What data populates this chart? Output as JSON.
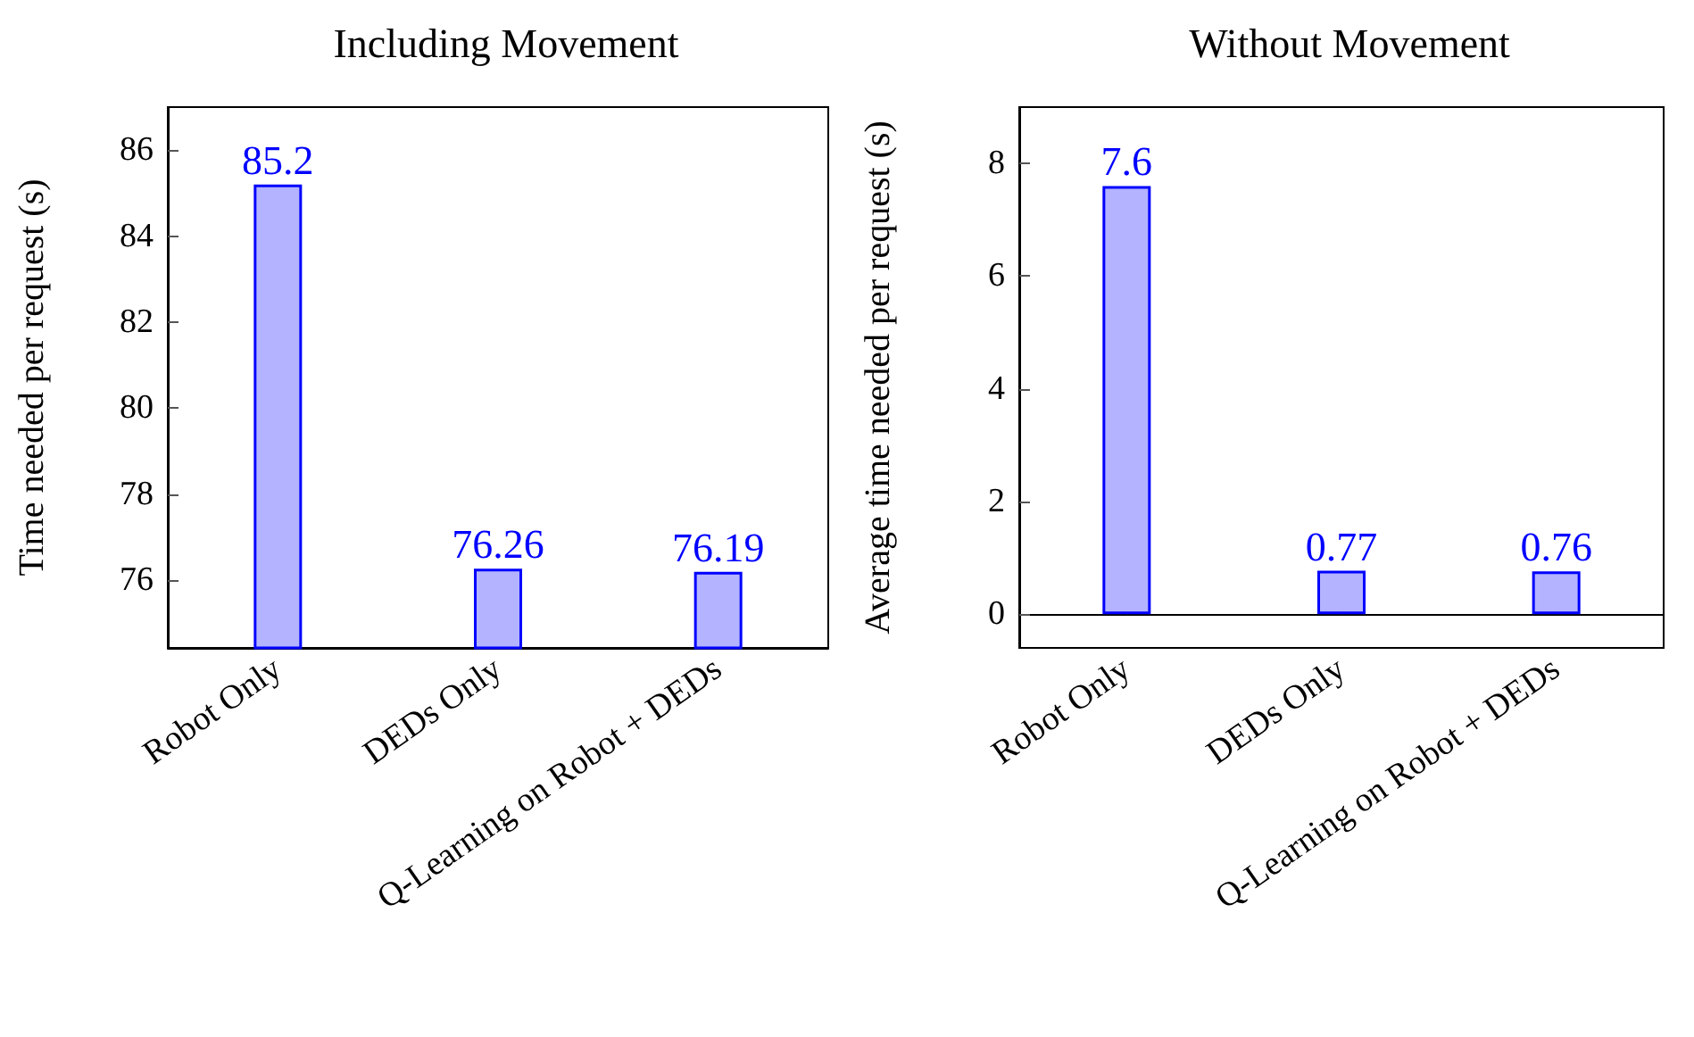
{
  "chart_data": [
    {
      "type": "bar",
      "title": "Including Movement",
      "ylabel": "Time needed per request (s)",
      "categories": [
        "Robot Only",
        "DEDs Only",
        "Q-Learning on Robot + DEDs"
      ],
      "values": [
        85.2,
        76.26,
        76.19
      ],
      "color": "#b3b3ff",
      "ylim": [
        74.42,
        87
      ],
      "yticks": [
        76,
        78,
        80,
        82,
        84,
        86
      ],
      "data_labels": true
    },
    {
      "type": "bar",
      "title": "Without Movement",
      "ylabel": "Average time needed per request (s)",
      "categories": [
        "Robot Only",
        "DEDs Only",
        "Q-Learning on Robot + DEDs"
      ],
      "values": [
        7.6,
        0.77,
        0.76
      ],
      "color": "#b3b3ff",
      "ylim": [
        -0.6,
        9
      ],
      "yticks": [
        0,
        2,
        4,
        6,
        8
      ],
      "data_labels": true
    }
  ]
}
